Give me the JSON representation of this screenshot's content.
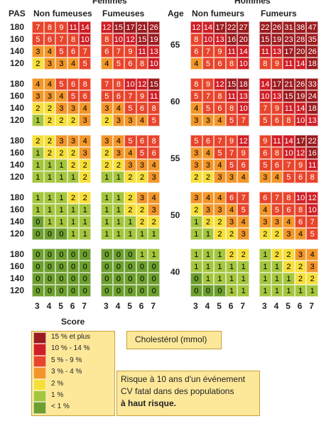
{
  "header": {
    "women": "Femmes",
    "men": "Hommes",
    "pas": "PAS",
    "age": "Age",
    "groups": [
      "Non fumeuses",
      "Fumeuses",
      "Non fumeurs",
      "Fumeurs"
    ]
  },
  "pas": [
    180,
    160,
    140,
    120
  ],
  "cholesterol": [
    3,
    4,
    5,
    6,
    7
  ],
  "blocks": [
    {
      "age": 65,
      "grids": [
        [
          [
            7,
            8,
            9,
            11,
            14
          ],
          [
            5,
            6,
            7,
            8,
            10
          ],
          [
            3,
            4,
            5,
            6,
            7
          ],
          [
            2,
            3,
            3,
            4,
            5
          ]
        ],
        [
          [
            12,
            15,
            17,
            21,
            26
          ],
          [
            8,
            10,
            12,
            15,
            19
          ],
          [
            6,
            7,
            9,
            11,
            13
          ],
          [
            4,
            5,
            6,
            8,
            10
          ]
        ],
        [
          [
            12,
            14,
            17,
            22,
            27
          ],
          [
            8,
            10,
            13,
            16,
            20
          ],
          [
            6,
            7,
            9,
            11,
            14
          ],
          [
            4,
            5,
            6,
            8,
            10
          ]
        ],
        [
          [
            22,
            26,
            31,
            38,
            47
          ],
          [
            15,
            19,
            23,
            28,
            35
          ],
          [
            11,
            13,
            17,
            20,
            26
          ],
          [
            8,
            9,
            11,
            14,
            18
          ]
        ]
      ]
    },
    {
      "age": 60,
      "grids": [
        [
          [
            4,
            4,
            5,
            6,
            8
          ],
          [
            3,
            3,
            4,
            5,
            6
          ],
          [
            2,
            2,
            3,
            3,
            4
          ],
          [
            1,
            2,
            2,
            2,
            3
          ]
        ],
        [
          [
            7,
            8,
            10,
            12,
            15
          ],
          [
            5,
            6,
            7,
            9,
            11
          ],
          [
            3,
            4,
            5,
            6,
            8
          ],
          [
            2,
            3,
            3,
            4,
            5
          ]
        ],
        [
          [
            8,
            9,
            12,
            15,
            18
          ],
          [
            5,
            7,
            8,
            11,
            13
          ],
          [
            4,
            5,
            6,
            8,
            10
          ],
          [
            3,
            3,
            4,
            5,
            7
          ]
        ],
        [
          [
            14,
            17,
            21,
            26,
            33
          ],
          [
            10,
            13,
            15,
            19,
            24
          ],
          [
            7,
            9,
            11,
            14,
            18
          ],
          [
            5,
            6,
            8,
            10,
            13
          ]
        ]
      ]
    },
    {
      "age": 55,
      "grids": [
        [
          [
            2,
            2,
            3,
            3,
            4
          ],
          [
            1,
            2,
            2,
            2,
            3
          ],
          [
            1,
            1,
            1,
            2,
            2
          ],
          [
            1,
            1,
            1,
            1,
            2
          ]
        ],
        [
          [
            3,
            4,
            5,
            6,
            8
          ],
          [
            2,
            3,
            4,
            5,
            6
          ],
          [
            2,
            2,
            3,
            3,
            4
          ],
          [
            1,
            1,
            2,
            2,
            3
          ]
        ],
        [
          [
            5,
            6,
            7,
            9,
            12
          ],
          [
            3,
            4,
            5,
            7,
            9
          ],
          [
            3,
            3,
            4,
            5,
            6
          ],
          [
            2,
            2,
            3,
            3,
            4
          ]
        ],
        [
          [
            9,
            11,
            14,
            17,
            22
          ],
          [
            6,
            8,
            10,
            12,
            16
          ],
          [
            5,
            6,
            7,
            9,
            11
          ],
          [
            3,
            4,
            5,
            6,
            8
          ]
        ]
      ]
    },
    {
      "age": 50,
      "grids": [
        [
          [
            1,
            1,
            1,
            2,
            2
          ],
          [
            1,
            1,
            1,
            1,
            1
          ],
          [
            0,
            1,
            1,
            1,
            1
          ],
          [
            0,
            0,
            0,
            1,
            1
          ]
        ],
        [
          [
            1,
            1,
            2,
            3,
            4
          ],
          [
            1,
            1,
            2,
            2,
            3
          ],
          [
            1,
            1,
            1,
            2,
            2
          ],
          [
            1,
            1,
            1,
            1,
            1
          ]
        ],
        [
          [
            3,
            4,
            4,
            6,
            7
          ],
          [
            2,
            3,
            3,
            4,
            5
          ],
          [
            1,
            2,
            2,
            3,
            4
          ],
          [
            1,
            1,
            2,
            2,
            3
          ]
        ],
        [
          [
            6,
            7,
            8,
            10,
            12
          ],
          [
            4,
            5,
            6,
            8,
            10
          ],
          [
            3,
            3,
            4,
            6,
            7
          ],
          [
            2,
            2,
            3,
            4,
            5
          ]
        ]
      ]
    },
    {
      "age": 40,
      "grids": [
        [
          [
            0,
            0,
            0,
            0,
            0
          ],
          [
            0,
            0,
            0,
            0,
            0
          ],
          [
            0,
            0,
            0,
            0,
            0
          ],
          [
            0,
            0,
            0,
            0,
            0
          ]
        ],
        [
          [
            0,
            0,
            0,
            1,
            1
          ],
          [
            0,
            0,
            0,
            0,
            0
          ],
          [
            0,
            0,
            0,
            0,
            0
          ],
          [
            0,
            0,
            0,
            0,
            0
          ]
        ],
        [
          [
            1,
            1,
            1,
            2,
            2
          ],
          [
            1,
            1,
            1,
            1,
            1
          ],
          [
            0,
            1,
            1,
            1,
            1
          ],
          [
            0,
            0,
            0,
            1,
            1
          ]
        ],
        [
          [
            1,
            2,
            2,
            3,
            4
          ],
          [
            1,
            1,
            2,
            2,
            3
          ],
          [
            1,
            1,
            1,
            2,
            2
          ],
          [
            1,
            1,
            1,
            1,
            1
          ]
        ]
      ]
    }
  ],
  "legend": {
    "title": "Score",
    "items": [
      {
        "label": "15 % et plus",
        "color": "#9b1b1f",
        "text_color": "#ffffff"
      },
      {
        "label": "10 % - 14 %",
        "color": "#cf1f27",
        "text_color": "#ffffff"
      },
      {
        "label": "5 % - 9 %",
        "color": "#e8452c",
        "text_color": "#ffffff"
      },
      {
        "label": "3 % - 4 %",
        "color": "#f2962a",
        "text_color": "#000000"
      },
      {
        "label": "2 %",
        "color": "#f7df3a",
        "text_color": "#000000"
      },
      {
        "label": "1 %",
        "color": "#a4c63e",
        "text_color": "#000000"
      },
      {
        "label": "< 1 %",
        "color": "#6d9f2e",
        "text_color": "#000000"
      }
    ]
  },
  "cholesterol_label": "Cholestérol (mmol)",
  "note": [
    "Risque à 10 ans d'un événement",
    "CV fatal dans des populations",
    "à haut risque."
  ]
}
